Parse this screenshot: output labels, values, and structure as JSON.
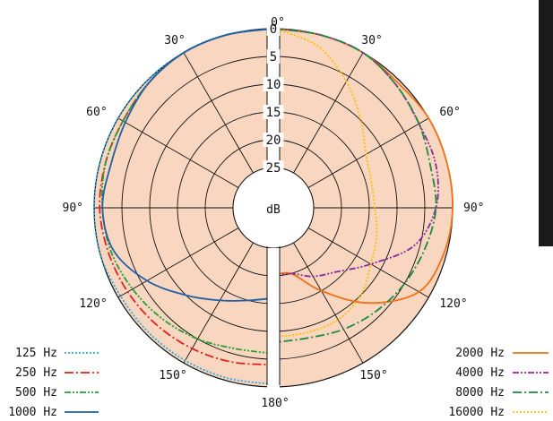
{
  "chart_data": {
    "type": "polar",
    "title": "",
    "unit_label": "dB",
    "radial_ticks": [
      "0",
      "5",
      "10",
      "15",
      "20",
      "25"
    ],
    "radial_range": [
      0,
      25
    ],
    "angle_ticks": [
      {
        "angle": 0,
        "label": "0°"
      },
      {
        "angle": 30,
        "label": "30°"
      },
      {
        "angle": 60,
        "label": "60°"
      },
      {
        "angle": 90,
        "label": "90°"
      },
      {
        "angle": 120,
        "label": "120°"
      },
      {
        "angle": 150,
        "label": "150°"
      },
      {
        "angle": 180,
        "label": "180°"
      }
    ],
    "fill_color": "#f9d6bf",
    "grid": true,
    "legend_left": [
      {
        "name": "125 Hz",
        "color": "#2ca8e0",
        "dash": "2,2"
      },
      {
        "name": "250 Hz",
        "color": "#e02020",
        "dash": "10,3,2,3"
      },
      {
        "name": "500 Hz",
        "color": "#23a035",
        "dash": "7,2,2,2,2,2"
      },
      {
        "name": "1000 Hz",
        "color": "#1f5fa8",
        "dash": ""
      }
    ],
    "legend_right": [
      {
        "name": "2000 Hz",
        "color": "#f07018",
        "dash": ""
      },
      {
        "name": "4000 Hz",
        "color": "#8a2a9a",
        "dash": "7,2,2,2,2,2"
      },
      {
        "name": "8000 Hz",
        "color": "#1a8a40",
        "dash": "10,3,2,3"
      },
      {
        "name": "16000 Hz",
        "color": "#ffc000",
        "dash": "2,2"
      }
    ],
    "series": [
      {
        "name": "125 Hz",
        "side": "left",
        "angles": [
          0,
          15,
          30,
          45,
          60,
          75,
          90,
          105,
          120,
          135,
          150,
          165,
          180
        ],
        "values": [
          0,
          0,
          0,
          0,
          0,
          0,
          0,
          0,
          0.5,
          0.5,
          0.5,
          0.5,
          0.5
        ]
      },
      {
        "name": "250 Hz",
        "side": "left",
        "angles": [
          0,
          15,
          30,
          45,
          60,
          75,
          90,
          105,
          120,
          135,
          150,
          165,
          180
        ],
        "values": [
          0,
          0,
          0,
          0.5,
          1,
          1,
          1,
          1.5,
          2,
          2.5,
          3,
          3.5,
          4
        ]
      },
      {
        "name": "500 Hz",
        "side": "left",
        "angles": [
          0,
          15,
          30,
          45,
          60,
          75,
          90,
          105,
          120,
          135,
          150,
          165,
          180
        ],
        "values": [
          0,
          0,
          0,
          0.5,
          1,
          1,
          1.5,
          2,
          3,
          4,
          5,
          6,
          6
        ]
      },
      {
        "name": "1000 Hz",
        "side": "left",
        "angles": [
          0,
          15,
          30,
          45,
          60,
          75,
          90,
          105,
          120,
          135,
          150,
          165,
          180
        ],
        "values": [
          0,
          0,
          0,
          0.5,
          1.5,
          2,
          1.5,
          2.5,
          6,
          10,
          13,
          15,
          16
        ]
      },
      {
        "name": "2000 Hz",
        "side": "right",
        "angles": [
          0,
          15,
          30,
          45,
          60,
          75,
          90,
          105,
          120,
          135,
          150,
          165,
          180
        ],
        "values": [
          0,
          0,
          0,
          0.5,
          0,
          0,
          0,
          0.5,
          2,
          8,
          15,
          20,
          20
        ]
      },
      {
        "name": "4000 Hz",
        "side": "right",
        "angles": [
          0,
          15,
          30,
          45,
          60,
          75,
          90,
          105,
          120,
          135,
          150,
          165,
          180
        ],
        "values": [
          0,
          0,
          0,
          1,
          2,
          2,
          3,
          6,
          12,
          16,
          18,
          20,
          20
        ]
      },
      {
        "name": "8000 Hz",
        "side": "right",
        "angles": [
          0,
          15,
          30,
          45,
          60,
          75,
          90,
          105,
          120,
          135,
          150,
          165,
          180
        ],
        "values": [
          0,
          0,
          0,
          1,
          2,
          3,
          3,
          4,
          5,
          6,
          7,
          8,
          8
        ]
      },
      {
        "name": "16000 Hz",
        "side": "right",
        "angles": [
          0,
          15,
          30,
          45,
          60,
          75,
          90,
          105,
          120,
          135,
          150,
          165,
          180
        ],
        "values": [
          0,
          2,
          6,
          10,
          13,
          14,
          14,
          13,
          12,
          10,
          9,
          9,
          9
        ]
      }
    ]
  }
}
